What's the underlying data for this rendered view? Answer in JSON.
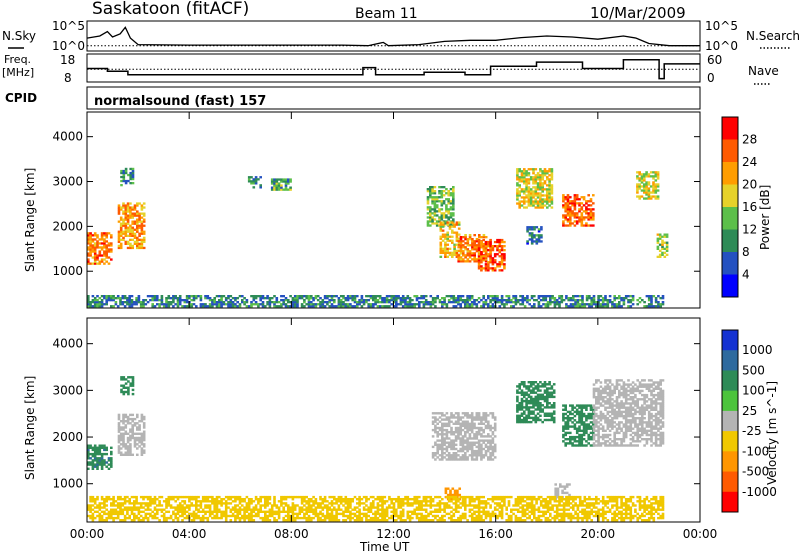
{
  "header": {
    "station": "Saskatoon (fitACF)",
    "beam": "Beam 11",
    "date": "10/Mar/2009"
  },
  "noise_panel": {
    "left_label": "N.Sky",
    "left_ticks": [
      "10^5",
      "10^0"
    ],
    "right_ticks": [
      "10^5",
      "10^0"
    ],
    "right_label": "N.Search"
  },
  "freq_panel": {
    "left_label_1": "Freq.",
    "left_label_2": "[MHz]",
    "left_ticks": [
      "18",
      "8"
    ],
    "right_ticks": [
      "60",
      "0"
    ],
    "right_label": "Nave"
  },
  "cpid_panel": {
    "label": "CPID",
    "value": "normalsound (fast) 157"
  },
  "time_axis": {
    "label": "Time UT",
    "ticks": [
      "00:00",
      "04:00",
      "08:00",
      "12:00",
      "16:00",
      "20:00",
      "00:00"
    ]
  },
  "range_axis": {
    "label": "Slant Range [km]",
    "ticks": [
      "4000",
      "3000",
      "2000",
      "1000"
    ]
  },
  "power_bar": {
    "label": "Power [dB]",
    "ticks": [
      "28",
      "24",
      "20",
      "16",
      "12",
      "8",
      "4"
    ],
    "colors": [
      "#0000ff",
      "#2451c0",
      "#2e8b57",
      "#5cbf4a",
      "#e6d22a",
      "#ff9d00",
      "#ff5a00",
      "#ff0000"
    ]
  },
  "velocity_bar": {
    "label": "Velocity [m s^-1]",
    "ticks": [
      "1000",
      "500",
      "100",
      "25",
      "-25",
      "-100",
      "-500",
      "-1000"
    ],
    "colors": [
      "#1432d2",
      "#2e6a9e",
      "#2e8b57",
      "#4cc43c",
      "#b4b4b4",
      "#f0c800",
      "#ff9600",
      "#ff5a00",
      "#ff0000"
    ]
  },
  "chart_data": {
    "type": "heatmap",
    "x_unit": "hours UT",
    "x_range": [
      0,
      24
    ],
    "y_range_km": [
      180,
      4550
    ],
    "noise_sky_log": [
      [
        0,
        2.2
      ],
      [
        0.5,
        2.6
      ],
      [
        0.8,
        3.4
      ],
      [
        1.0,
        2.4
      ],
      [
        1.3,
        3.0
      ],
      [
        1.5,
        4.2
      ],
      [
        1.7,
        2.2
      ],
      [
        2.0,
        1.0
      ],
      [
        4.0,
        0.9
      ],
      [
        6.0,
        0.9
      ],
      [
        8.0,
        0.9
      ],
      [
        10.0,
        0.9
      ],
      [
        11.0,
        0.8
      ],
      [
        11.6,
        1.4
      ],
      [
        11.8,
        0.8
      ],
      [
        13.0,
        1.0
      ],
      [
        14.0,
        1.6
      ],
      [
        15.0,
        1.8
      ],
      [
        16.0,
        1.8
      ],
      [
        17.0,
        2.3
      ],
      [
        18.0,
        2.6
      ],
      [
        19.0,
        2.4
      ],
      [
        20.0,
        2.0
      ],
      [
        21.0,
        2.6
      ],
      [
        21.5,
        2.2
      ],
      [
        22.0,
        1.2
      ],
      [
        22.8,
        0.8
      ],
      [
        24.0,
        0.8
      ]
    ],
    "noise_search_log": [
      [
        0,
        0.8
      ],
      [
        24,
        0.8
      ]
    ],
    "freq_mhz": [
      [
        0,
        13.0
      ],
      [
        0.8,
        13.0
      ],
      [
        0.8,
        11.8
      ],
      [
        1.6,
        11.8
      ],
      [
        1.6,
        10.3
      ],
      [
        10.8,
        10.3
      ],
      [
        10.8,
        13.4
      ],
      [
        11.3,
        13.4
      ],
      [
        11.3,
        10.3
      ],
      [
        13.2,
        10.3
      ],
      [
        13.2,
        11.4
      ],
      [
        14.8,
        11.4
      ],
      [
        14.8,
        10.3
      ],
      [
        15.8,
        10.3
      ],
      [
        15.8,
        14.0
      ],
      [
        17.6,
        14.0
      ],
      [
        17.6,
        15.8
      ],
      [
        19.4,
        15.8
      ],
      [
        19.4,
        13.0
      ],
      [
        21.0,
        13.0
      ],
      [
        21.0,
        16.8
      ],
      [
        22.4,
        16.8
      ],
      [
        22.4,
        8.6
      ],
      [
        22.6,
        8.6
      ],
      [
        22.6,
        15.0
      ],
      [
        24,
        15.0
      ]
    ],
    "nave": [
      [
        0,
        28
      ],
      [
        24,
        28
      ]
    ],
    "power_regions": [
      {
        "t0": 0.0,
        "t1": 0.9,
        "r0": 1150,
        "r1": 1850,
        "db": 24
      },
      {
        "t0": 1.2,
        "t1": 2.2,
        "r0": 1500,
        "r1": 2500,
        "db": 22
      },
      {
        "t0": 1.3,
        "t1": 1.8,
        "r0": 2900,
        "r1": 3300,
        "db": 10
      },
      {
        "t0": 6.3,
        "t1": 6.8,
        "r0": 2850,
        "r1": 3100,
        "db": 10
      },
      {
        "t0": 7.2,
        "t1": 8.0,
        "r0": 2800,
        "r1": 3050,
        "db": 12
      },
      {
        "t0": 13.3,
        "t1": 14.3,
        "r0": 2000,
        "r1": 2900,
        "db": 14
      },
      {
        "t0": 13.8,
        "t1": 14.6,
        "r0": 1300,
        "r1": 2100,
        "db": 20
      },
      {
        "t0": 14.5,
        "t1": 15.6,
        "r0": 1200,
        "r1": 1800,
        "db": 24
      },
      {
        "t0": 15.3,
        "t1": 16.3,
        "r0": 1000,
        "r1": 1700,
        "db": 26
      },
      {
        "t0": 16.8,
        "t1": 18.2,
        "r0": 2400,
        "r1": 3300,
        "db": 18
      },
      {
        "t0": 18.6,
        "t1": 19.8,
        "r0": 2000,
        "r1": 2700,
        "db": 26
      },
      {
        "t0": 17.2,
        "t1": 17.8,
        "r0": 1600,
        "r1": 2000,
        "db": 8
      },
      {
        "t0": 21.5,
        "t1": 22.4,
        "r0": 2600,
        "r1": 3200,
        "db": 18
      },
      {
        "t0": 22.3,
        "t1": 22.7,
        "r0": 1300,
        "r1": 1800,
        "db": 16
      },
      {
        "t0": 0.0,
        "t1": 22.5,
        "r0": 200,
        "r1": 450,
        "db": 9
      }
    ],
    "velocity_regions": [
      {
        "t0": 0.0,
        "t1": 0.9,
        "r0": 1300,
        "r1": 1800,
        "v": 400
      },
      {
        "t0": 1.2,
        "t1": 2.2,
        "r0": 1600,
        "r1": 2500,
        "v": 0
      },
      {
        "t0": 1.3,
        "t1": 1.8,
        "r0": 2900,
        "r1": 3300,
        "v": 300
      },
      {
        "t0": 13.5,
        "t1": 16.0,
        "r0": 1500,
        "r1": 2500,
        "v": 0
      },
      {
        "t0": 14.0,
        "t1": 14.6,
        "r0": 650,
        "r1": 900,
        "v": -200
      },
      {
        "t0": 16.8,
        "t1": 18.3,
        "r0": 2300,
        "r1": 3200,
        "v": 300
      },
      {
        "t0": 18.6,
        "t1": 19.8,
        "r0": 1800,
        "r1": 2700,
        "v": 350
      },
      {
        "t0": 19.8,
        "t1": 22.5,
        "r0": 1800,
        "r1": 3200,
        "v": 0
      },
      {
        "t0": 18.3,
        "t1": 18.9,
        "r0": 650,
        "r1": 1000,
        "v": 0
      },
      {
        "t0": 0.0,
        "t1": 22.5,
        "r0": 200,
        "r1": 700,
        "v": -60
      }
    ]
  }
}
